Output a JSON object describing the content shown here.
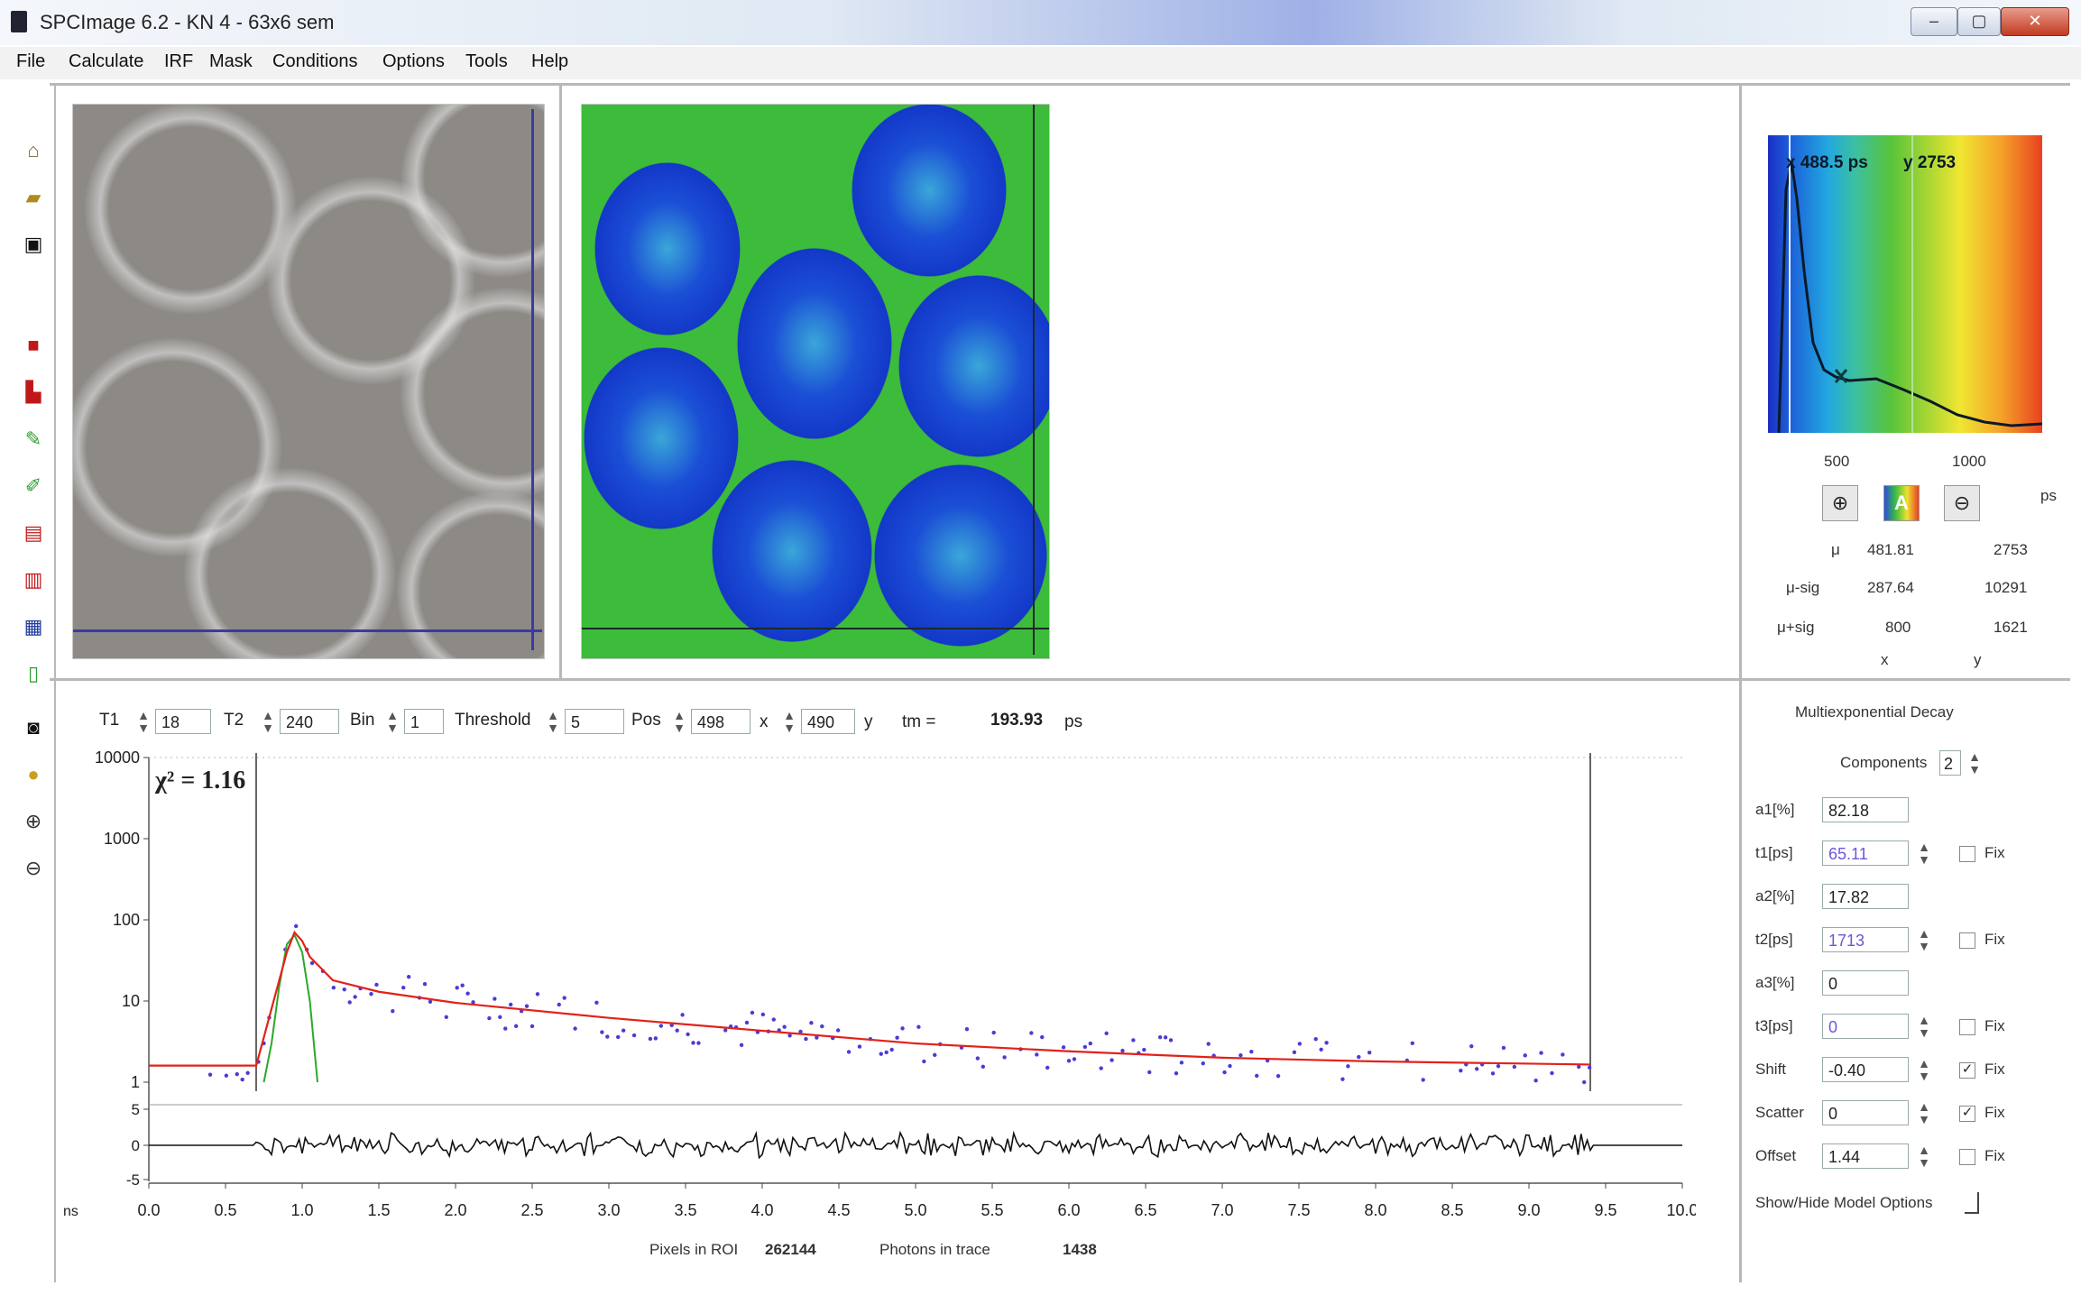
{
  "window": {
    "title": "SPCImage 6.2 - KN 4 - 63x6 sem",
    "min": "‒",
    "max": "▢",
    "close": "✕"
  },
  "menu": [
    "File",
    "Calculate",
    "IRF",
    "Mask",
    "Conditions",
    "Options",
    "Tools",
    "Help"
  ],
  "toolbar_icons": [
    "home-icon",
    "open-folder-icon",
    "save-icon",
    "lock-icon",
    "unlock-icon",
    "pencil-icon",
    "eraser-icon",
    "paste-icon",
    "copy-icon",
    "image-view-icon",
    "histogram-icon",
    "camera-icon",
    "palette-icon",
    "zoom-in-icon",
    "zoom-out-icon"
  ],
  "histogram": {
    "readout_x": "x 488.5 ps",
    "readout_y": "y 2753",
    "ticks": [
      "500",
      "1000"
    ],
    "unit": "ps",
    "table": [
      {
        "label": "μ",
        "x": "481.81",
        "y": "2753"
      },
      {
        "label": "μ-sig",
        "x": "287.64",
        "y": "10291"
      },
      {
        "label": "μ+sig",
        "x": "800",
        "y": "1621"
      }
    ],
    "col_x": "x",
    "col_y": "y"
  },
  "params": {
    "t1_label": "T1",
    "t1": "18",
    "t2_label": "T2",
    "t2": "240",
    "bin_label": "Bin",
    "bin": "1",
    "threshold_label": "Threshold",
    "threshold": "5",
    "pos_label": "Pos",
    "pos_x": "498",
    "x_label": "x",
    "pos_y": "490",
    "y_label": "y",
    "tm_label": "tm =",
    "tm_value": "193.93",
    "tm_unit": "ps"
  },
  "model": {
    "title": "Multiexponential Decay",
    "components_label": "Components",
    "components": "2",
    "rows": [
      {
        "label": "a1[%]",
        "value": "82.18",
        "spinner": false,
        "fix": null
      },
      {
        "label": "t1[ps]",
        "value": "65.11",
        "spinner": true,
        "fix": false
      },
      {
        "label": "a2[%]",
        "value": "17.82",
        "spinner": false,
        "fix": null
      },
      {
        "label": "t2[ps]",
        "value": "1713",
        "spinner": true,
        "fix": false
      },
      {
        "label": "a3[%]",
        "value": "0",
        "spinner": false,
        "fix": null
      },
      {
        "label": "t3[ps]",
        "value": "0",
        "spinner": true,
        "fix": false
      },
      {
        "label": "Shift",
        "value": "-0.40",
        "spinner": true,
        "fix": true
      },
      {
        "label": "Scatter",
        "value": "0",
        "spinner": true,
        "fix": true
      },
      {
        "label": "Offset",
        "value": "1.44",
        "spinner": true,
        "fix": false
      }
    ],
    "fix_label": "Fix",
    "show_hide_label": "Show/Hide Model Options"
  },
  "chart_data": {
    "type": "scatter",
    "chi_label": "χ² = 1.16",
    "y_scale": "log",
    "ylim": [
      1,
      10000
    ],
    "yticks": [
      "10000",
      "1000",
      "100",
      "10",
      "1"
    ],
    "xlim": [
      0,
      10
    ],
    "xticks": [
      "0.0",
      "0.5",
      "1.0",
      "1.5",
      "2.0",
      "2.5",
      "3.0",
      "3.5",
      "4.0",
      "4.5",
      "5.0",
      "5.5",
      "6.0",
      "6.5",
      "7.0",
      "7.5",
      "8.0",
      "8.5",
      "9.0",
      "9.5",
      "10.0"
    ],
    "xunit": "ns",
    "residual_ticks": [
      "5",
      "0",
      "-5"
    ],
    "fit": {
      "name": "fit",
      "x": [
        0.0,
        0.7,
        0.72,
        0.8,
        0.9,
        0.95,
        1.0,
        1.05,
        1.2,
        1.5,
        2.0,
        3.0,
        4.0,
        5.0,
        6.0,
        7.0,
        8.0,
        9.4
      ],
      "y": [
        1.6,
        1.6,
        2.2,
        8,
        40,
        70,
        55,
        35,
        18,
        13,
        9.5,
        6.2,
        4.3,
        3.0,
        2.4,
        2.0,
        1.8,
        1.65
      ]
    },
    "irf": {
      "name": "IRF",
      "x": [
        0.75,
        0.8,
        0.85,
        0.9,
        0.95,
        1.0,
        1.05,
        1.1
      ],
      "y": [
        1,
        3,
        15,
        50,
        65,
        40,
        10,
        1
      ]
    },
    "cursor_x": [
      0.7,
      9.4
    ],
    "colors": {
      "data": "#4b3bd6",
      "fit": "#e2221a",
      "irf": "#2aa82a",
      "residual": "#111111"
    },
    "footer": {
      "pixels_label": "Pixels in ROI",
      "pixels": "262144",
      "photons_label": "Photons in trace",
      "photons": "1438"
    }
  }
}
